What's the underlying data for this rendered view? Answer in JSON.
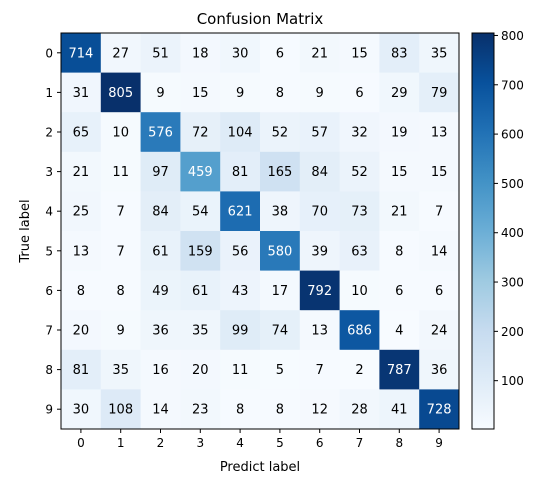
{
  "chart_data": {
    "type": "heatmap",
    "title": "Confusion Matrix",
    "xlabel": "Predict label",
    "ylabel": "True label",
    "x_ticks": [
      "0",
      "1",
      "2",
      "3",
      "4",
      "5",
      "6",
      "7",
      "8",
      "9"
    ],
    "y_ticks": [
      "0",
      "1",
      "2",
      "3",
      "4",
      "5",
      "6",
      "7",
      "8",
      "9"
    ],
    "values": [
      [
        714,
        27,
        51,
        18,
        30,
        6,
        21,
        15,
        83,
        35
      ],
      [
        31,
        805,
        9,
        15,
        9,
        8,
        9,
        6,
        29,
        79
      ],
      [
        65,
        10,
        576,
        72,
        104,
        52,
        57,
        32,
        19,
        13
      ],
      [
        21,
        11,
        97,
        459,
        81,
        165,
        84,
        52,
        15,
        15
      ],
      [
        25,
        7,
        84,
        54,
        621,
        38,
        70,
        73,
        21,
        7
      ],
      [
        13,
        7,
        61,
        159,
        56,
        580,
        39,
        63,
        8,
        14
      ],
      [
        8,
        8,
        49,
        61,
        43,
        17,
        792,
        10,
        6,
        6
      ],
      [
        20,
        9,
        36,
        35,
        99,
        74,
        13,
        686,
        4,
        24
      ],
      [
        81,
        35,
        16,
        20,
        11,
        5,
        7,
        2,
        787,
        36
      ],
      [
        30,
        108,
        14,
        23,
        8,
        8,
        12,
        28,
        41,
        728
      ]
    ],
    "colormap": "Blues",
    "colorbar": {
      "range": [
        2,
        805
      ],
      "ticks": [
        100,
        200,
        300,
        400,
        500,
        600,
        700,
        800
      ]
    },
    "grid": false
  }
}
